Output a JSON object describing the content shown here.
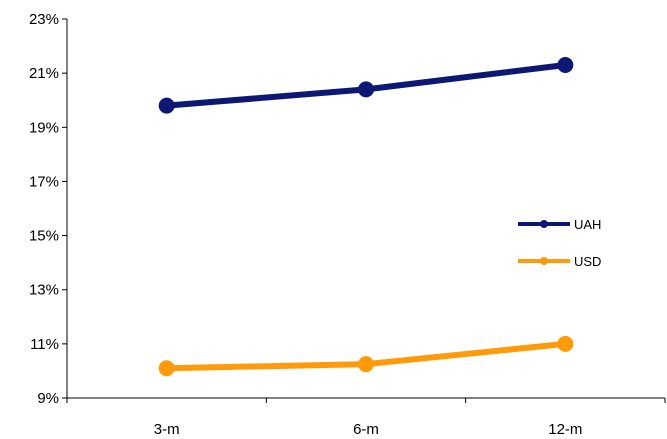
{
  "chart_data": {
    "type": "line",
    "title": "",
    "xlabel": "",
    "ylabel": "",
    "categories": [
      "3-m",
      "6-m",
      "12-m"
    ],
    "ylim": [
      9,
      23
    ],
    "yticks": [
      9,
      11,
      13,
      15,
      17,
      19,
      21,
      23
    ],
    "ytick_format": "{v}%",
    "grid": false,
    "legend_position": "right",
    "series": [
      {
        "name": "UAH",
        "values": [
          19.8,
          20.4,
          21.3
        ],
        "color": "#0c1874"
      },
      {
        "name": "USD",
        "values": [
          10.1,
          10.25,
          11.0
        ],
        "color": "#ff9a0b"
      }
    ]
  }
}
